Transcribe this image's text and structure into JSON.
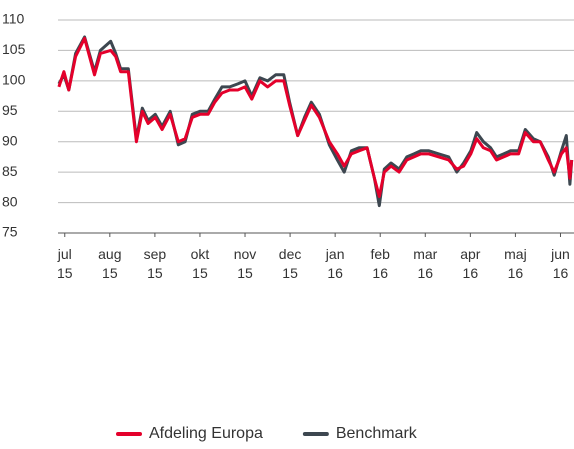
{
  "chart_data": {
    "type": "line",
    "xlim": [
      -0.15,
      11.3
    ],
    "xticks": [
      {
        "value": 0,
        "label": [
          "jul",
          "15"
        ]
      },
      {
        "value": 1,
        "label": [
          "aug",
          "15"
        ]
      },
      {
        "value": 2,
        "label": [
          "sep",
          "15"
        ]
      },
      {
        "value": 3,
        "label": [
          "okt",
          "15"
        ]
      },
      {
        "value": 4,
        "label": [
          "nov",
          "15"
        ]
      },
      {
        "value": 5,
        "label": [
          "dec",
          "15"
        ]
      },
      {
        "value": 6,
        "label": [
          "jan",
          "16"
        ]
      },
      {
        "value": 7,
        "label": [
          "feb",
          "16"
        ]
      },
      {
        "value": 8,
        "label": [
          "mar",
          "16"
        ]
      },
      {
        "value": 9,
        "label": [
          "apr",
          "16"
        ]
      },
      {
        "value": 10,
        "label": [
          "maj",
          "16"
        ]
      },
      {
        "value": 11,
        "label": [
          "jun",
          "16"
        ]
      }
    ],
    "ylim": [
      75,
      110
    ],
    "yticks": [
      75,
      80,
      85,
      90,
      95,
      100,
      105,
      110
    ],
    "grid": true,
    "legend": "bottom",
    "x": [
      -0.13,
      -0.02,
      0.09,
      0.24,
      0.44,
      0.66,
      0.79,
      1.02,
      1.13,
      1.24,
      1.41,
      1.59,
      1.72,
      1.85,
      2.01,
      2.16,
      2.34,
      2.52,
      2.67,
      2.83,
      3.0,
      3.18,
      3.33,
      3.49,
      3.66,
      3.84,
      4.0,
      4.15,
      4.33,
      4.5,
      4.68,
      4.86,
      4.99,
      5.17,
      5.32,
      5.47,
      5.65,
      5.87,
      6.05,
      6.2,
      6.36,
      6.53,
      6.71,
      6.87,
      6.98,
      7.09,
      7.24,
      7.42,
      7.59,
      7.75,
      7.9,
      8.08,
      8.3,
      8.52,
      8.7,
      8.85,
      9.01,
      9.14,
      9.29,
      9.45,
      9.58,
      9.74,
      9.89,
      10.07,
      10.22,
      10.4,
      10.55,
      10.73,
      10.86,
      11.02,
      11.13,
      11.21,
      11.25
    ],
    "series": [
      {
        "name": "Benchmark",
        "color": "#3d4750",
        "values": [
          99.5,
          101,
          98.5,
          104.5,
          107.2,
          101.5,
          105,
          106.5,
          104.5,
          102,
          102,
          90.5,
          95.5,
          93.5,
          94.5,
          92.5,
          95,
          89.5,
          90,
          94.5,
          95,
          95,
          97,
          99,
          99,
          99.5,
          100,
          97.5,
          100.5,
          100,
          101,
          101,
          96.5,
          91,
          94,
          96.5,
          94.5,
          89.5,
          87,
          85,
          88.5,
          89,
          89,
          84,
          79.5,
          85.5,
          86.5,
          85.5,
          87.5,
          88,
          88.5,
          88.5,
          88,
          87.5,
          85,
          86.5,
          88.5,
          91.5,
          90,
          89,
          87.5,
          88,
          88.5,
          88.5,
          92,
          90.5,
          90,
          87.5,
          84.5,
          88.5,
          91,
          83,
          87
        ]
      },
      {
        "name": "Afdeling Europa",
        "color": "#e4002b",
        "values": [
          99,
          101.5,
          98.5,
          104,
          107,
          101,
          104.5,
          105,
          104,
          101.5,
          101.5,
          90,
          95,
          93,
          94,
          92,
          94.5,
          90,
          90.5,
          94,
          94.5,
          94.5,
          96.5,
          98,
          98.5,
          98.5,
          99,
          97,
          100,
          99,
          100,
          100,
          96,
          91,
          93.5,
          96,
          94,
          90,
          88,
          86,
          88,
          88.5,
          89,
          84,
          81,
          85,
          86,
          85,
          87,
          87.5,
          88,
          88,
          87.5,
          87,
          85.5,
          86,
          88,
          90.5,
          89,
          88.5,
          87,
          87.5,
          88,
          88,
          91.5,
          90,
          90,
          87,
          85,
          88,
          89,
          84,
          87
        ]
      }
    ]
  }
}
